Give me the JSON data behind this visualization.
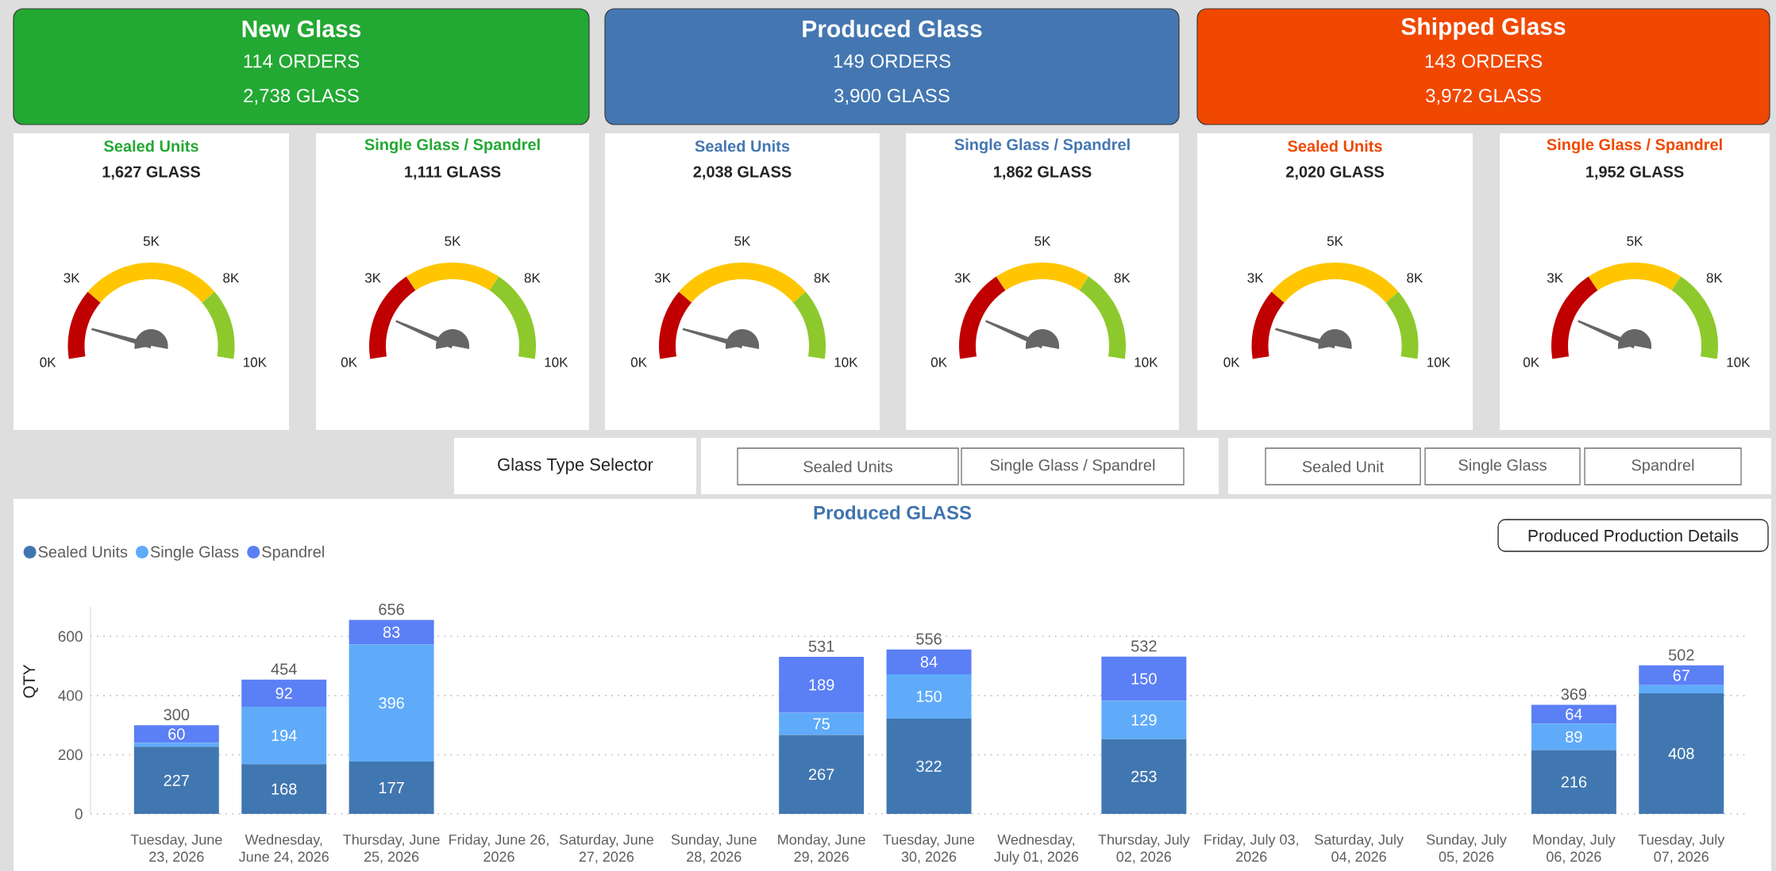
{
  "chart_data": [
    {
      "type": "other",
      "title": "New Glass",
      "annotations": [
        "114 ORDERS",
        "2,738 GLASS"
      ],
      "color": "#23A833"
    },
    {
      "type": "other",
      "title": "Produced Glass",
      "annotations": [
        "149 ORDERS",
        "3,900 GLASS"
      ],
      "color": "#4477B1"
    },
    {
      "type": "other",
      "title": "Shipped Glass",
      "annotations": [
        "143 ORDERS",
        "3,972 GLASS"
      ],
      "color": "#F04800"
    },
    {
      "type": "donut",
      "title": "Sealed Units",
      "subtitle": "1,627 GLASS",
      "categories": [
        null,
        null,
        null
      ],
      "values": [
        25,
        50,
        25
      ],
      "colors": [
        "#C00000",
        "#FFC600",
        "#8DC92C"
      ],
      "needle": null,
      "annotations": [
        "0K",
        "3K",
        "5K",
        "8K",
        "10K"
      ]
    },
    {
      "type": "donut",
      "title": "Single Glass / Spandrel",
      "subtitle": "1,111 GLASS",
      "categories": [
        null,
        null,
        null
      ],
      "values": [
        33,
        34,
        33
      ],
      "colors": [
        "#C00000",
        "#FFC600",
        "#8DC92C"
      ],
      "needle": null,
      "annotations": [
        "0K",
        "3K",
        "5K",
        "8K",
        "10K"
      ]
    },
    {
      "type": "donut",
      "title": "Sealed Units",
      "subtitle": "2,038 GLASS",
      "categories": [
        null,
        null,
        null
      ],
      "values": [
        25,
        50,
        25
      ],
      "colors": [
        "#C00000",
        "#FFC600",
        "#8DC92C"
      ],
      "needle": null,
      "annotations": [
        "0K",
        "3K",
        "5K",
        "8K",
        "10K"
      ]
    },
    {
      "type": "donut",
      "title": "Single Glass / Spandrel",
      "subtitle": "1,862 GLASS",
      "categories": [
        null,
        null,
        null
      ],
      "values": [
        33,
        34,
        33
      ],
      "colors": [
        "#C00000",
        "#FFC600",
        "#8DC92C"
      ],
      "needle": null,
      "annotations": [
        "0K",
        "3K",
        "5K",
        "8K",
        "10K"
      ]
    },
    {
      "type": "donut",
      "title": "Sealed Units",
      "subtitle": "2,020 GLASS",
      "categories": [
        null,
        null,
        null
      ],
      "values": [
        25,
        50,
        25
      ],
      "colors": [
        "#C00000",
        "#FFC600",
        "#8DC92C"
      ],
      "needle": null,
      "annotations": [
        "0K",
        "3K",
        "5K",
        "8K",
        "10K"
      ]
    },
    {
      "type": "donut",
      "title": "Single Glass / Spandrel",
      "subtitle": "1,952 GLASS",
      "categories": [
        null,
        null,
        null
      ],
      "values": [
        33,
        34,
        33
      ],
      "colors": [
        "#C00000",
        "#FFC600",
        "#8DC92C"
      ],
      "needle": null,
      "annotations": [
        "0K",
        "3K",
        "5K",
        "8K",
        "10K"
      ]
    },
    {
      "type": "other",
      "title": "Glass Type Selector",
      "annotations": [
        "Sealed Units",
        "Single Glass / Spandrel",
        "Sealed Unit",
        "Single Glass",
        "Spandrel"
      ]
    },
    {
      "type": "bar",
      "stacked": true,
      "title": "Produced GLASS",
      "ylabel": "QTY",
      "categories": [
        "Tuesday, June 23, 2026",
        "Wednesday, June 24, 2026",
        "Thursday, June 25, 2026",
        "Friday, June 26, 2026",
        "Saturday, June 27, 2026",
        "Sunday, June 28, 2026",
        "Monday, June 29, 2026",
        "Tuesday, June 30, 2026",
        "Wednesday, July 01, 2026",
        "Thursday, July 02, 2026",
        "Friday, July 03, 2026",
        "Saturday, July 04, 2026",
        "Sunday, July 05, 2026",
        "Monday, July 06, 2026",
        "Tuesday, July 07, 2026"
      ],
      "series": [
        {
          "name": "Sealed Units",
          "color": "#4177B1",
          "values": [
            227,
            168,
            177,
            null,
            null,
            null,
            267,
            322,
            null,
            253,
            null,
            null,
            null,
            216,
            408
          ],
          "value_labels": [
            "227",
            "168",
            "177",
            null,
            null,
            null,
            "267",
            "322",
            null,
            "253",
            null,
            null,
            null,
            "216",
            "408"
          ]
        },
        {
          "name": "Single Glass",
          "color": "#5FABFA",
          "values": [
            13,
            194,
            396,
            null,
            null,
            null,
            75,
            150,
            null,
            129,
            null,
            null,
            null,
            89,
            27
          ],
          "value_labels": [
            null,
            "194",
            "396",
            null,
            null,
            null,
            "75",
            "150",
            null,
            "129",
            null,
            null,
            null,
            "89",
            null
          ]
        },
        {
          "name": "Spandrel",
          "color": "#5B7FF5",
          "values": [
            60,
            92,
            83,
            null,
            null,
            null,
            189,
            84,
            null,
            150,
            null,
            null,
            null,
            64,
            67
          ],
          "value_labels": [
            "60",
            "92",
            "83",
            null,
            null,
            null,
            "189",
            "84",
            null,
            "150",
            null,
            null,
            null,
            "64",
            "67"
          ]
        }
      ],
      "totals": [
        "300",
        "454",
        "656",
        null,
        null,
        null,
        "531",
        "556",
        null,
        "532",
        null,
        null,
        null,
        "369",
        "502"
      ],
      "ylim": [
        0,
        700
      ],
      "yticks": [
        0,
        200,
        400,
        600
      ],
      "grid": "y",
      "legend": "top left",
      "annotations": [
        "Produced Production Details"
      ]
    }
  ]
}
